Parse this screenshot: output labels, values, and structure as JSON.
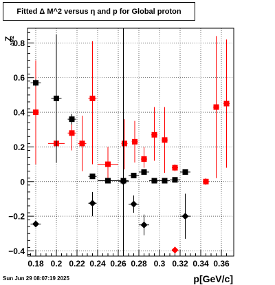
{
  "chart_data": {
    "type": "scatter",
    "title": "Fitted Δ M^2 versus η and p for Global proton",
    "xlabel": "p[GeV/c]",
    "ylabel": "ZₑM2",
    "ylabel_main": "Z",
    "ylabel_sub": "ΔM2",
    "xlim": [
      0.172,
      0.372
    ],
    "ylim": [
      -0.43,
      0.885
    ],
    "grid": true,
    "x_ticks": [
      0.18,
      0.2,
      0.22,
      0.24,
      0.26,
      0.28,
      0.3,
      0.32,
      0.34,
      0.36
    ],
    "x_tick_labels": [
      "0.18",
      "0.2",
      "0.22",
      "0.24",
      "0.26",
      "0.28",
      "0.3",
      "0.32",
      "0.34",
      "0.36"
    ],
    "y_ticks": [
      -0.4,
      -0.2,
      0,
      0.2,
      0.4,
      0.6,
      0.8
    ],
    "y_tick_labels": [
      "−0.4",
      "−0.2",
      "0",
      "0.2",
      "0.4",
      "0.6",
      "0.8"
    ],
    "series": [
      {
        "color": "#ff0000",
        "marker": "square",
        "points": [
          {
            "x": 0.18,
            "y": 0.4,
            "ylo": 0.1,
            "yhi": 0.7,
            "xerr": 0.003
          },
          {
            "x": 0.2,
            "y": 0.22,
            "ylo": 0.12,
            "yhi": 0.33,
            "xerr": 0.008
          },
          {
            "x": 0.215,
            "y": 0.28,
            "ylo": 0.18,
            "yhi": 0.38,
            "xerr": 0.004
          },
          {
            "x": 0.225,
            "y": 0.22,
            "ylo": 0.06,
            "yhi": 0.38,
            "xerr": 0.004
          },
          {
            "x": 0.235,
            "y": 0.48,
            "ylo": 0.1,
            "yhi": 0.81,
            "xerr": 0.004
          },
          {
            "x": 0.25,
            "y": 0.1,
            "ylo": 0.02,
            "yhi": 0.2,
            "xerr": 0.01
          },
          {
            "x": 0.266,
            "y": 0.22,
            "ylo": 0.07,
            "yhi": 0.36,
            "xerr": 0.003
          },
          {
            "x": 0.276,
            "y": 0.23,
            "ylo": 0.11,
            "yhi": 0.35,
            "xerr": 0.003
          },
          {
            "x": 0.285,
            "y": 0.13,
            "ylo": 0.08,
            "yhi": 0.2,
            "xerr": 0.003
          },
          {
            "x": 0.295,
            "y": 0.27,
            "ylo": 0.12,
            "yhi": 0.43,
            "xerr": 0.003
          },
          {
            "x": 0.305,
            "y": 0.24,
            "ylo": 0.05,
            "yhi": 0.43,
            "xerr": 0.003
          },
          {
            "x": 0.315,
            "y": 0.08,
            "ylo": 0.06,
            "yhi": 0.1,
            "xerr": 0.003
          },
          {
            "x": 0.345,
            "y": 0.0,
            "ylo": -0.02,
            "yhi": 0.02,
            "xerr": 0.003
          },
          {
            "x": 0.355,
            "y": 0.43,
            "ylo": 0.02,
            "yhi": 0.84,
            "xerr": 0.003
          },
          {
            "x": 0.365,
            "y": 0.45,
            "ylo": 0.08,
            "yhi": 0.82,
            "xerr": 0.003
          }
        ]
      },
      {
        "color": "#000000",
        "marker": "square",
        "points": [
          {
            "x": 0.18,
            "y": 0.57,
            "ylo": 0.55,
            "yhi": 0.59,
            "xerr": 0.005
          },
          {
            "x": 0.2,
            "y": 0.48,
            "ylo": 0.11,
            "yhi": 0.85,
            "xerr": 0.005
          },
          {
            "x": 0.215,
            "y": 0.36,
            "ylo": 0.33,
            "yhi": 0.39,
            "xerr": 0.004
          },
          {
            "x": 0.235,
            "y": 0.03,
            "ylo": 0.02,
            "yhi": 0.04,
            "xerr": 0.004
          },
          {
            "x": 0.25,
            "y": 0.005,
            "ylo": -0.005,
            "yhi": 0.015,
            "xerr": 0.01
          },
          {
            "x": 0.265,
            "y": 0.005,
            "ylo": -0.005,
            "yhi": 0.015,
            "xerr": 0.005
          },
          {
            "x": 0.275,
            "y": 0.035,
            "ylo": 0.025,
            "yhi": 0.045,
            "xerr": 0.005
          },
          {
            "x": 0.285,
            "y": 0.055,
            "ylo": 0.045,
            "yhi": 0.065,
            "xerr": 0.005
          },
          {
            "x": 0.295,
            "y": 0.005,
            "ylo": -0.005,
            "yhi": 0.015,
            "xerr": 0.005
          },
          {
            "x": 0.305,
            "y": 0.005,
            "ylo": -0.005,
            "yhi": 0.015,
            "xerr": 0.005
          },
          {
            "x": 0.315,
            "y": 0.01,
            "ylo": 0.0,
            "yhi": 0.02,
            "xerr": 0.005
          },
          {
            "x": 0.325,
            "y": 0.055,
            "ylo": 0.045,
            "yhi": 0.065,
            "xerr": 0.005
          }
        ]
      },
      {
        "color": "#000000",
        "marker": "diamond",
        "points": [
          {
            "x": 0.18,
            "y": -0.245,
            "ylo": -0.26,
            "yhi": -0.23,
            "xerr": 0.005
          },
          {
            "x": 0.235,
            "y": -0.125,
            "ylo": -0.2,
            "yhi": -0.06,
            "xerr": 0.004
          },
          {
            "x": 0.265,
            "y": 0.0,
            "ylo": -0.43,
            "yhi": 0.885,
            "xerr": 0.005
          },
          {
            "x": 0.275,
            "y": -0.13,
            "ylo": -0.18,
            "yhi": -0.08,
            "xerr": 0.005
          },
          {
            "x": 0.285,
            "y": -0.25,
            "ylo": -0.31,
            "yhi": -0.19,
            "xerr": 0.005
          },
          {
            "x": 0.325,
            "y": -0.2,
            "ylo": -0.33,
            "yhi": -0.07,
            "xerr": 0.005
          }
        ]
      },
      {
        "color": "#ff0000",
        "marker": "diamond",
        "points": [
          {
            "x": 0.315,
            "y": -0.395,
            "ylo": -0.41,
            "yhi": -0.38,
            "xerr": 0.003
          }
        ]
      }
    ]
  },
  "timestamp": "Sun Jun 29 08:07:19 2025"
}
